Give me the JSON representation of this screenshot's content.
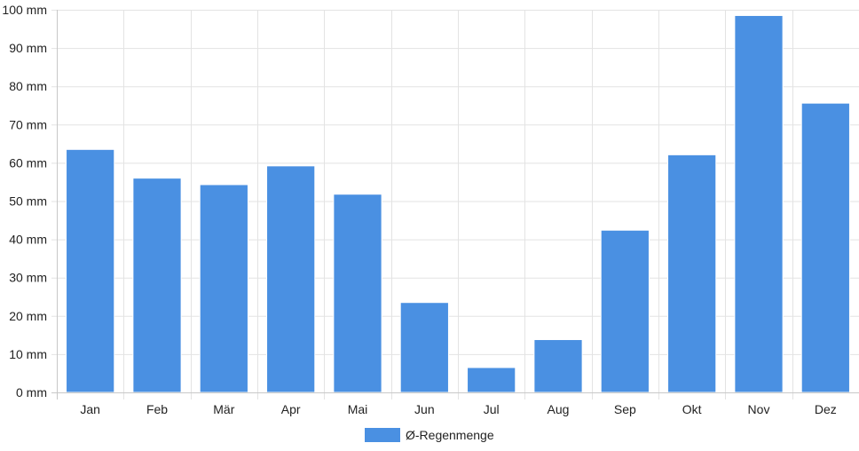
{
  "chart_data": {
    "type": "bar",
    "categories": [
      "Jan",
      "Feb",
      "Mär",
      "Apr",
      "Mai",
      "Jun",
      "Jul",
      "Aug",
      "Sep",
      "Okt",
      "Nov",
      "Dez"
    ],
    "series": [
      {
        "name": "Ø-Regenmenge",
        "values": [
          63.5,
          56,
          54.3,
          59.2,
          51.8,
          23.5,
          6.5,
          13.8,
          42.4,
          62.1,
          98.5,
          75.6
        ],
        "color": "#4a90e2"
      }
    ],
    "title": "",
    "xlabel": "",
    "ylabel": "",
    "ylim": [
      0,
      100
    ],
    "y_ticks": [
      0,
      10,
      20,
      30,
      40,
      50,
      60,
      70,
      80,
      90,
      100
    ],
    "y_tick_suffix": " mm",
    "grid": true,
    "legend_position": "bottom-center"
  }
}
